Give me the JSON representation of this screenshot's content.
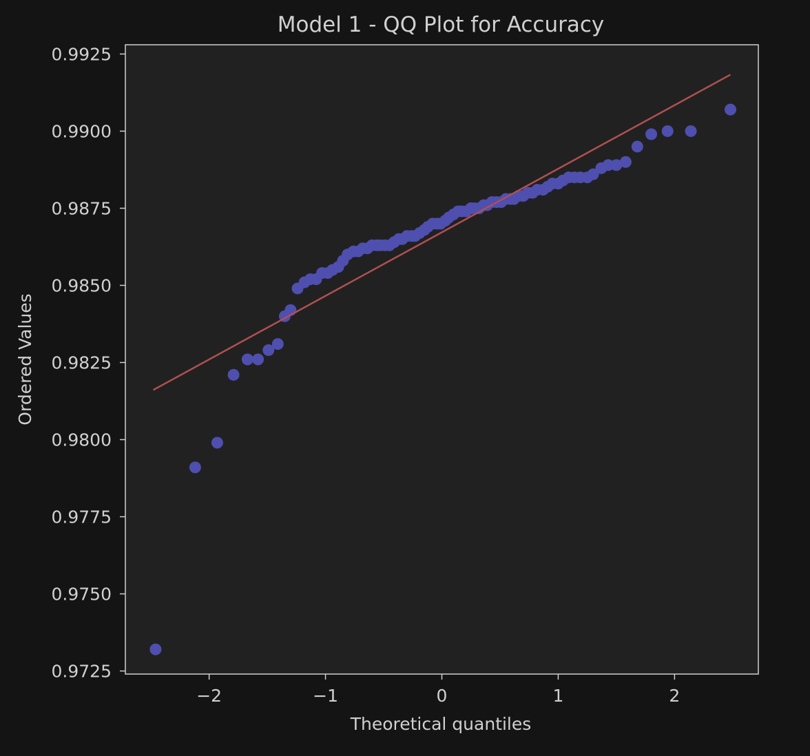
{
  "chart_data": {
    "type": "scatter",
    "title": "Model 1 - QQ Plot for Accuracy",
    "xlabel": "Theoretical quantiles",
    "ylabel": "Ordered Values",
    "xlim": [
      -2.72,
      2.72
    ],
    "ylim": [
      0.9724,
      0.9928
    ],
    "xticks": [
      {
        "value": -2,
        "label": "−2"
      },
      {
        "value": -1,
        "label": "−1"
      },
      {
        "value": 0,
        "label": "0"
      },
      {
        "value": 1,
        "label": "1"
      },
      {
        "value": 2,
        "label": "2"
      }
    ],
    "yticks": [
      {
        "value": 0.9725,
        "label": "0.9725"
      },
      {
        "value": 0.975,
        "label": "0.9750"
      },
      {
        "value": 0.9775,
        "label": "0.9775"
      },
      {
        "value": 0.98,
        "label": "0.9800"
      },
      {
        "value": 0.9825,
        "label": "0.9825"
      },
      {
        "value": 0.985,
        "label": "0.9850"
      },
      {
        "value": 0.9875,
        "label": "0.9875"
      },
      {
        "value": 0.99,
        "label": "0.9900"
      },
      {
        "value": 0.9925,
        "label": "0.9925"
      }
    ],
    "grid": false,
    "colors": {
      "points": "#4f4fb0",
      "fit_line": "#b05050",
      "background": "#212121",
      "frame": "#d0d0d0"
    },
    "series": [
      {
        "type": "scatter",
        "points": [
          [
            -2.46,
            0.9732
          ],
          [
            -2.12,
            0.9791
          ],
          [
            -1.93,
            0.9799
          ],
          [
            -1.79,
            0.9821
          ],
          [
            -1.67,
            0.9826
          ],
          [
            -1.58,
            0.9826
          ],
          [
            -1.49,
            0.9829
          ],
          [
            -1.41,
            0.9831
          ],
          [
            -1.35,
            0.984
          ],
          [
            -1.3,
            0.9842
          ],
          [
            -1.24,
            0.9849
          ],
          [
            -1.18,
            0.9851
          ],
          [
            -1.13,
            0.9852
          ],
          [
            -1.08,
            0.9852
          ],
          [
            -1.03,
            0.9854
          ],
          [
            -0.98,
            0.9854
          ],
          [
            -0.94,
            0.9855
          ],
          [
            -0.89,
            0.9856
          ],
          [
            -0.85,
            0.9858
          ],
          [
            -0.81,
            0.986
          ],
          [
            -0.76,
            0.9861
          ],
          [
            -0.72,
            0.9861
          ],
          [
            -0.68,
            0.9862
          ],
          [
            -0.64,
            0.9862
          ],
          [
            -0.6,
            0.9863
          ],
          [
            -0.56,
            0.9863
          ],
          [
            -0.53,
            0.9863
          ],
          [
            -0.49,
            0.9863
          ],
          [
            -0.45,
            0.9863
          ],
          [
            -0.41,
            0.9864
          ],
          [
            -0.37,
            0.9865
          ],
          [
            -0.34,
            0.9865
          ],
          [
            -0.3,
            0.9866
          ],
          [
            -0.26,
            0.9866
          ],
          [
            -0.23,
            0.9866
          ],
          [
            -0.19,
            0.9867
          ],
          [
            -0.15,
            0.9868
          ],
          [
            -0.12,
            0.9869
          ],
          [
            -0.08,
            0.987
          ],
          [
            -0.04,
            0.987
          ],
          [
            -0.01,
            0.987
          ],
          [
            0.03,
            0.9871
          ],
          [
            0.06,
            0.9872
          ],
          [
            0.1,
            0.9873
          ],
          [
            0.14,
            0.9874
          ],
          [
            0.17,
            0.9874
          ],
          [
            0.21,
            0.9874
          ],
          [
            0.25,
            0.9875
          ],
          [
            0.28,
            0.9875
          ],
          [
            0.32,
            0.9875
          ],
          [
            0.36,
            0.9876
          ],
          [
            0.39,
            0.9876
          ],
          [
            0.43,
            0.9877
          ],
          [
            0.47,
            0.9877
          ],
          [
            0.51,
            0.9877
          ],
          [
            0.55,
            0.9878
          ],
          [
            0.59,
            0.9878
          ],
          [
            0.62,
            0.9878
          ],
          [
            0.66,
            0.9879
          ],
          [
            0.7,
            0.9879
          ],
          [
            0.74,
            0.988
          ],
          [
            0.78,
            0.988
          ],
          [
            0.82,
            0.9881
          ],
          [
            0.87,
            0.9881
          ],
          [
            0.91,
            0.9882
          ],
          [
            0.95,
            0.9883
          ],
          [
            1.0,
            0.9883
          ],
          [
            1.04,
            0.9884
          ],
          [
            1.09,
            0.9885
          ],
          [
            1.14,
            0.9885
          ],
          [
            1.19,
            0.9885
          ],
          [
            1.25,
            0.9885
          ],
          [
            1.3,
            0.9886
          ],
          [
            1.37,
            0.9888
          ],
          [
            1.43,
            0.9889
          ],
          [
            1.5,
            0.9889
          ],
          [
            1.58,
            0.989
          ],
          [
            1.68,
            0.9895
          ],
          [
            1.8,
            0.9899
          ],
          [
            1.94,
            0.99
          ],
          [
            2.14,
            0.99
          ],
          [
            2.48,
            0.9907
          ]
        ]
      },
      {
        "type": "line",
        "points": [
          [
            -2.48,
            0.98161
          ],
          [
            2.48,
            0.99183
          ]
        ]
      }
    ]
  }
}
